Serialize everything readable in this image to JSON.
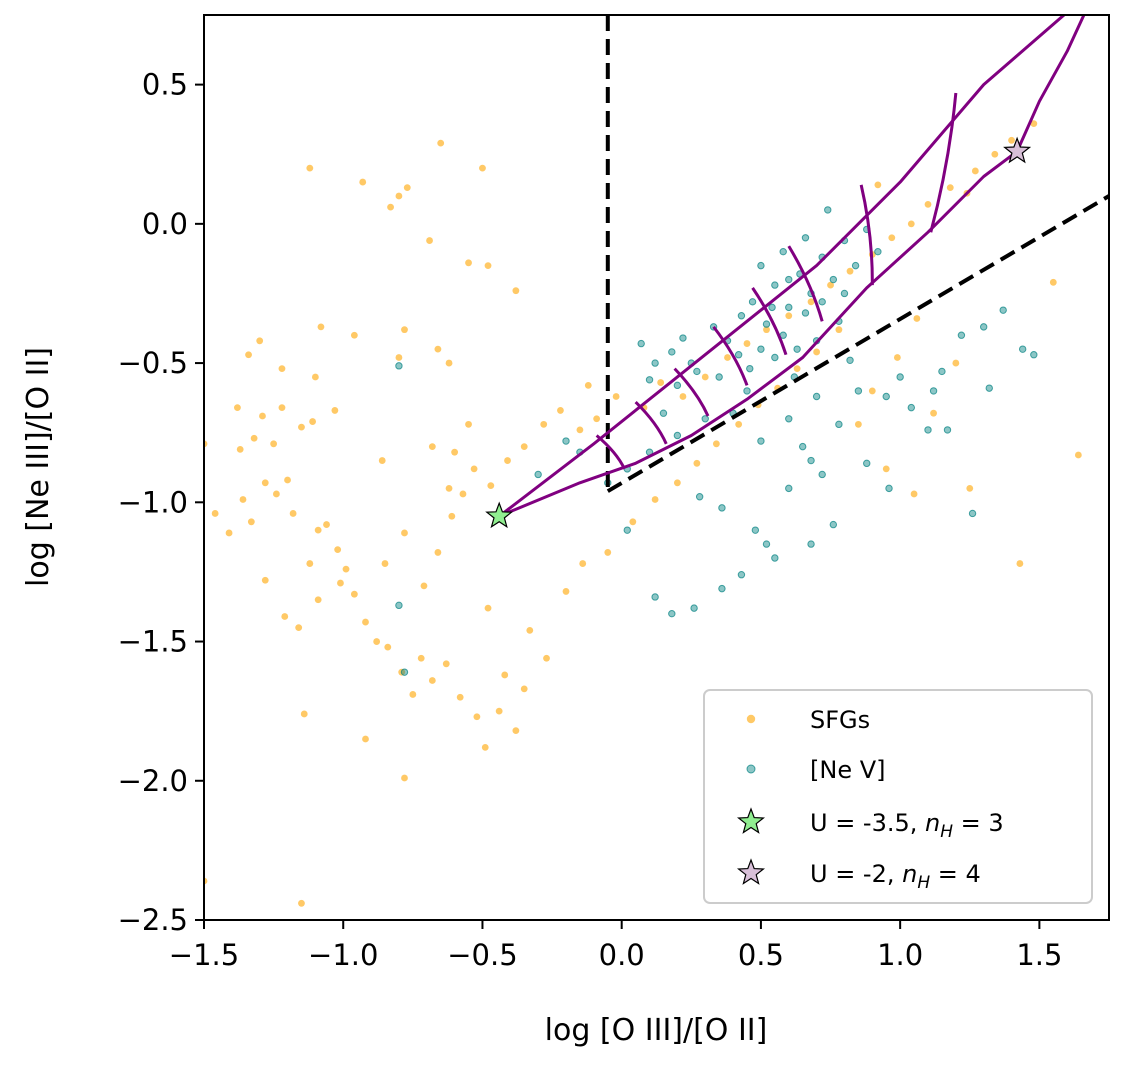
{
  "chart_data": {
    "type": "scatter",
    "xlabel": "log [O III]/[O II]",
    "ylabel": "log [Ne III]/[O II]",
    "xlim": [
      -1.5,
      1.75
    ],
    "ylim": [
      -2.5,
      0.75
    ],
    "x_ticks": [
      -1.5,
      -1.0,
      -0.5,
      0.0,
      0.5,
      1.0,
      1.5
    ],
    "x_tick_labels": [
      "−1.5",
      "−1.0",
      "−0.5",
      "0.0",
      "0.5",
      "1.0",
      "1.5"
    ],
    "y_ticks": [
      -2.5,
      -2.0,
      -1.5,
      -1.0,
      -0.5,
      0.0,
      0.5
    ],
    "y_tick_labels": [
      "−2.5",
      "−2.0",
      "−1.5",
      "−1.0",
      "−0.5",
      "0.0",
      "0.5"
    ],
    "grid": false,
    "legend_position": "bottom-right",
    "colors": {
      "sfg": "#ffa500",
      "nev": "#008080",
      "grid_line": "#800080",
      "star_low": "#90ee90",
      "star_high": "#d8bfd8",
      "demarcation": "#000000"
    },
    "series": [
      {
        "name": "SFGs",
        "marker": "circle",
        "points": [
          [
            -1.12,
            0.2
          ],
          [
            -0.5,
            0.2
          ],
          [
            -0.65,
            0.29
          ],
          [
            -0.93,
            0.15
          ],
          [
            -0.77,
            0.13
          ],
          [
            -0.83,
            0.06
          ],
          [
            -0.8,
            0.1
          ],
          [
            -0.69,
            -0.06
          ],
          [
            -0.55,
            -0.14
          ],
          [
            -0.48,
            -0.15
          ],
          [
            -0.38,
            -0.24
          ],
          [
            -1.34,
            -0.47
          ],
          [
            -1.3,
            -0.42
          ],
          [
            -1.08,
            -0.37
          ],
          [
            -1.22,
            -0.52
          ],
          [
            -1.1,
            -0.55
          ],
          [
            -0.96,
            -0.4
          ],
          [
            -0.8,
            -0.48
          ],
          [
            -0.78,
            -0.38
          ],
          [
            -0.66,
            -0.45
          ],
          [
            -0.62,
            -0.5
          ],
          [
            -1.38,
            -0.66
          ],
          [
            -1.29,
            -0.69
          ],
          [
            -1.22,
            -0.66
          ],
          [
            -1.15,
            -0.73
          ],
          [
            -1.11,
            -0.71
          ],
          [
            -1.03,
            -0.67
          ],
          [
            -1.25,
            -0.79
          ],
          [
            -1.37,
            -0.81
          ],
          [
            -1.32,
            -0.77
          ],
          [
            -1.2,
            -0.92
          ],
          [
            -1.28,
            -0.93
          ],
          [
            -1.36,
            -0.99
          ],
          [
            -1.5,
            -0.79
          ],
          [
            -1.46,
            -1.04
          ],
          [
            -1.41,
            -1.11
          ],
          [
            -1.33,
            -1.07
          ],
          [
            -1.24,
            -0.97
          ],
          [
            -1.18,
            -1.04
          ],
          [
            -1.09,
            -1.1
          ],
          [
            -1.02,
            -1.17
          ],
          [
            -1.06,
            -1.08
          ],
          [
            -0.99,
            -1.24
          ],
          [
            -1.12,
            -1.22
          ],
          [
            -1.28,
            -1.28
          ],
          [
            -1.21,
            -1.41
          ],
          [
            -1.16,
            -1.45
          ],
          [
            -1.09,
            -1.35
          ],
          [
            -1.01,
            -1.29
          ],
          [
            -0.96,
            -1.33
          ],
          [
            -0.92,
            -1.43
          ],
          [
            -0.88,
            -1.5
          ],
          [
            -0.84,
            -1.52
          ],
          [
            -0.79,
            -1.61
          ],
          [
            -0.75,
            -1.69
          ],
          [
            -0.72,
            -1.56
          ],
          [
            -0.68,
            -1.64
          ],
          [
            -0.63,
            -1.58
          ],
          [
            -0.58,
            -1.7
          ],
          [
            -0.52,
            -1.77
          ],
          [
            -0.44,
            -1.75
          ],
          [
            -0.38,
            -1.82
          ],
          [
            -0.49,
            -1.88
          ],
          [
            -1.14,
            -1.76
          ],
          [
            -0.92,
            -1.85
          ],
          [
            -0.78,
            -1.99
          ],
          [
            -1.15,
            -2.44
          ],
          [
            -1.5,
            -2.36
          ],
          [
            -0.85,
            -1.22
          ],
          [
            -0.78,
            -1.11
          ],
          [
            -0.71,
            -1.3
          ],
          [
            -0.66,
            -1.18
          ],
          [
            -0.61,
            -1.05
          ],
          [
            -0.57,
            -0.97
          ],
          [
            -0.53,
            -0.88
          ],
          [
            -0.47,
            -0.94
          ],
          [
            -0.41,
            -0.85
          ],
          [
            -0.35,
            -0.8
          ],
          [
            -0.28,
            -0.72
          ],
          [
            -0.22,
            -0.67
          ],
          [
            -0.15,
            -0.74
          ],
          [
            -0.09,
            -0.7
          ],
          [
            -0.86,
            -0.85
          ],
          [
            -0.68,
            -0.8
          ],
          [
            -0.6,
            -0.82
          ],
          [
            -0.55,
            -0.72
          ],
          [
            -0.12,
            -0.58
          ],
          [
            -0.02,
            -0.62
          ],
          [
            0.08,
            -0.66
          ],
          [
            0.14,
            -0.57
          ],
          [
            0.22,
            -0.62
          ],
          [
            0.3,
            -0.55
          ],
          [
            0.38,
            -0.48
          ],
          [
            0.45,
            -0.43
          ],
          [
            0.52,
            -0.38
          ],
          [
            0.6,
            -0.33
          ],
          [
            0.68,
            -0.28
          ],
          [
            0.75,
            -0.22
          ],
          [
            0.82,
            -0.17
          ],
          [
            0.9,
            -0.11
          ],
          [
            0.97,
            -0.05
          ],
          [
            1.04,
            0.0
          ],
          [
            1.1,
            0.07
          ],
          [
            1.18,
            0.13
          ],
          [
            1.27,
            0.19
          ],
          [
            1.34,
            0.25
          ],
          [
            1.4,
            0.3
          ],
          [
            1.48,
            0.36
          ],
          [
            1.55,
            -0.21
          ],
          [
            1.64,
            -0.83
          ],
          [
            1.12,
            -0.68
          ],
          [
            1.25,
            -0.95
          ],
          [
            1.43,
            -1.22
          ],
          [
            1.2,
            -0.5
          ],
          [
            1.06,
            -0.34
          ],
          [
            0.99,
            -0.48
          ],
          [
            0.9,
            -0.6
          ],
          [
            0.85,
            -0.72
          ],
          [
            0.95,
            -0.88
          ],
          [
            1.05,
            -0.97
          ],
          [
            1.24,
            0.11
          ],
          [
            0.92,
            0.14
          ],
          [
            -0.62,
            -0.95
          ],
          [
            -0.48,
            -1.38
          ],
          [
            -0.33,
            -1.46
          ],
          [
            -0.27,
            -1.56
          ],
          [
            -0.42,
            -1.62
          ],
          [
            -0.35,
            -1.67
          ],
          [
            -0.2,
            -1.32
          ],
          [
            -0.14,
            -1.22
          ],
          [
            -0.05,
            -1.18
          ],
          [
            0.04,
            -1.07
          ],
          [
            0.12,
            -0.99
          ],
          [
            0.2,
            -0.93
          ],
          [
            0.27,
            -0.86
          ],
          [
            0.34,
            -0.79
          ],
          [
            0.42,
            -0.72
          ],
          [
            0.49,
            -0.65
          ],
          [
            0.56,
            -0.59
          ],
          [
            0.63,
            -0.52
          ],
          [
            0.7,
            -0.46
          ],
          [
            0.78,
            -0.38
          ]
        ]
      },
      {
        "name": "[Ne V]",
        "marker": "circle",
        "points": [
          [
            0.07,
            -0.43
          ],
          [
            0.12,
            -0.5
          ],
          [
            0.18,
            -0.46
          ],
          [
            0.22,
            -0.41
          ],
          [
            0.27,
            -0.53
          ],
          [
            0.33,
            -0.37
          ],
          [
            0.38,
            -0.42
          ],
          [
            0.43,
            -0.33
          ],
          [
            0.47,
            -0.28
          ],
          [
            0.52,
            -0.36
          ],
          [
            0.55,
            -0.22
          ],
          [
            0.6,
            -0.3
          ],
          [
            0.64,
            -0.18
          ],
          [
            0.68,
            -0.25
          ],
          [
            0.72,
            -0.12
          ],
          [
            0.76,
            -0.2
          ],
          [
            0.8,
            -0.06
          ],
          [
            0.84,
            -0.15
          ],
          [
            0.88,
            -0.02
          ],
          [
            0.92,
            -0.1
          ],
          [
            0.5,
            -0.15
          ],
          [
            0.58,
            -0.1
          ],
          [
            0.66,
            -0.05
          ],
          [
            0.74,
            0.05
          ],
          [
            0.55,
            -0.48
          ],
          [
            0.62,
            -0.55
          ],
          [
            0.7,
            -0.42
          ],
          [
            0.45,
            -0.6
          ],
          [
            0.4,
            -0.68
          ],
          [
            0.3,
            -0.7
          ],
          [
            0.2,
            -0.76
          ],
          [
            0.1,
            -0.82
          ],
          [
            0.02,
            -0.88
          ],
          [
            -0.05,
            -0.93
          ],
          [
            -0.15,
            -0.82
          ],
          [
            -0.2,
            -0.78
          ],
          [
            0.28,
            -0.98
          ],
          [
            0.36,
            -1.02
          ],
          [
            0.48,
            -1.1
          ],
          [
            0.52,
            -1.15
          ],
          [
            0.6,
            -0.95
          ],
          [
            0.68,
            -0.85
          ],
          [
            0.72,
            -0.9
          ],
          [
            0.78,
            -0.72
          ],
          [
            0.85,
            -0.6
          ],
          [
            0.95,
            -0.62
          ],
          [
            1.0,
            -0.55
          ],
          [
            1.04,
            -0.66
          ],
          [
            1.1,
            -0.74
          ],
          [
            1.15,
            -0.53
          ],
          [
            1.22,
            -0.4
          ],
          [
            1.3,
            -0.37
          ],
          [
            1.37,
            -0.31
          ],
          [
            1.44,
            -0.45
          ],
          [
            1.48,
            -0.47
          ],
          [
            1.32,
            -0.59
          ],
          [
            0.76,
            -1.08
          ],
          [
            0.68,
            -1.15
          ],
          [
            0.55,
            -1.2
          ],
          [
            0.43,
            -1.26
          ],
          [
            0.36,
            -1.31
          ],
          [
            0.26,
            -1.38
          ],
          [
            0.18,
            -1.4
          ],
          [
            0.12,
            -1.34
          ],
          [
            0.65,
            -0.8
          ],
          [
            0.82,
            -0.49
          ],
          [
            0.88,
            -0.86
          ],
          [
            0.96,
            -0.95
          ],
          [
            0.6,
            -0.7
          ],
          [
            0.7,
            -0.62
          ],
          [
            0.5,
            -0.78
          ],
          [
            0.2,
            -0.58
          ],
          [
            0.15,
            -0.68
          ],
          [
            0.35,
            -0.55
          ],
          [
            0.42,
            -0.47
          ],
          [
            0.46,
            -0.52
          ],
          [
            0.58,
            -0.4
          ],
          [
            0.63,
            -0.45
          ],
          [
            0.5,
            -0.45
          ],
          [
            0.54,
            -0.3
          ],
          [
            0.6,
            -0.2
          ],
          [
            0.66,
            -0.32
          ],
          [
            0.72,
            -0.28
          ],
          [
            0.78,
            -0.35
          ],
          [
            0.8,
            -0.25
          ],
          [
            1.17,
            -0.74
          ],
          [
            1.12,
            -0.6
          ],
          [
            1.26,
            -1.04
          ],
          [
            -0.8,
            -0.51
          ],
          [
            -0.78,
            -1.61
          ],
          [
            -0.8,
            -1.37
          ],
          [
            -0.3,
            -0.9
          ],
          [
            0.02,
            -1.1
          ],
          [
            0.1,
            -0.56
          ],
          [
            0.25,
            -0.5
          ]
        ]
      },
      {
        "name": "U = -3.5, n_H = 3",
        "marker": "star",
        "points": [
          [
            -0.44,
            -1.05
          ]
        ]
      },
      {
        "name": "U = -2, n_H = 4",
        "marker": "star",
        "points": [
          [
            1.42,
            0.26
          ]
        ]
      }
    ],
    "model_grid": {
      "upper_edge": [
        [
          -0.44,
          -1.05
        ],
        [
          -0.1,
          -0.79
        ],
        [
          0.3,
          -0.47
        ],
        [
          0.7,
          -0.15
        ],
        [
          1.0,
          0.15
        ],
        [
          1.3,
          0.5
        ],
        [
          1.6,
          0.76
        ]
      ],
      "lower_edge": [
        [
          -0.44,
          -1.05
        ],
        [
          -0.15,
          -0.93
        ],
        [
          0.05,
          -0.86
        ],
        [
          0.25,
          -0.76
        ],
        [
          0.45,
          -0.63
        ],
        [
          0.65,
          -0.48
        ],
        [
          0.88,
          -0.23
        ],
        [
          1.1,
          -0.03
        ],
        [
          1.3,
          0.17
        ],
        [
          1.42,
          0.26
        ]
      ],
      "upper_right_branch": [
        [
          1.42,
          0.26
        ],
        [
          1.5,
          0.44
        ],
        [
          1.6,
          0.62
        ],
        [
          1.66,
          0.75
        ]
      ],
      "rungs": [
        [
          [
            -0.09,
            -0.76
          ],
          [
            0.01,
            -0.88
          ]
        ],
        [
          [
            0.05,
            -0.64
          ],
          [
            0.16,
            -0.79
          ]
        ],
        [
          [
            0.19,
            -0.52
          ],
          [
            0.31,
            -0.69
          ]
        ],
        [
          [
            0.33,
            -0.37
          ],
          [
            0.45,
            -0.58
          ]
        ],
        [
          [
            0.47,
            -0.23
          ],
          [
            0.59,
            -0.47
          ]
        ],
        [
          [
            0.6,
            -0.08
          ],
          [
            0.72,
            -0.35
          ]
        ],
        [
          [
            0.86,
            0.14
          ],
          [
            0.9,
            -0.22
          ]
        ],
        [
          [
            1.2,
            0.47
          ],
          [
            1.11,
            -0.03
          ]
        ]
      ]
    },
    "demarcation_lines": [
      {
        "style": "dashed",
        "points": [
          [
            -0.05,
            0.75
          ],
          [
            -0.05,
            -0.96
          ]
        ]
      },
      {
        "style": "dashed",
        "points": [
          [
            -0.05,
            -0.96
          ],
          [
            1.75,
            0.1
          ]
        ]
      }
    ],
    "legend": {
      "entries": [
        {
          "label": "SFGs",
          "marker": "circle",
          "color_key": "sfg"
        },
        {
          "label": "[Ne V]",
          "marker": "circle",
          "color_key": "nev"
        },
        {
          "label_prefix": "U = -3.5, ",
          "label_var": "n",
          "label_sub": "H",
          "label_suffix": " = 3",
          "marker": "star",
          "color_key": "star_low"
        },
        {
          "label_prefix": "U = -2, ",
          "label_var": "n",
          "label_sub": "H",
          "label_suffix": " = 4",
          "marker": "star",
          "color_key": "star_high"
        }
      ]
    }
  }
}
